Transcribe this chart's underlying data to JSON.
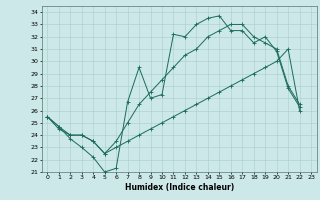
{
  "title": "",
  "xlabel": "Humidex (Indice chaleur)",
  "bg_color": "#cce8e8",
  "grid_color": "#aacccc",
  "line_color": "#1a6b5a",
  "xlim": [
    -0.5,
    23.5
  ],
  "ylim": [
    21,
    34.5
  ],
  "xticks": [
    0,
    1,
    2,
    3,
    4,
    5,
    6,
    7,
    8,
    9,
    10,
    11,
    12,
    13,
    14,
    15,
    16,
    17,
    18,
    19,
    20,
    21,
    22,
    23
  ],
  "yticks": [
    21,
    22,
    23,
    24,
    25,
    26,
    27,
    28,
    29,
    30,
    31,
    32,
    33,
    34
  ],
  "line1_y": [
    25.5,
    24.7,
    23.7,
    23.0,
    22.2,
    21.0,
    21.3,
    26.7,
    29.5,
    27.0,
    27.3,
    32.2,
    32.0,
    33.0,
    33.5,
    33.7,
    32.5,
    32.5,
    31.5,
    32.0,
    30.8,
    27.8,
    26.3,
    null
  ],
  "line2_y": [
    25.5,
    24.7,
    24.0,
    24.0,
    23.5,
    22.5,
    23.5,
    25.0,
    26.5,
    27.5,
    28.5,
    29.5,
    30.5,
    31.0,
    32.0,
    32.5,
    33.0,
    33.0,
    32.0,
    31.5,
    31.0,
    28.0,
    26.5,
    null
  ],
  "line3_y": [
    25.5,
    24.5,
    24.0,
    24.0,
    23.5,
    22.5,
    23.0,
    23.5,
    24.0,
    24.5,
    25.0,
    25.5,
    26.0,
    26.5,
    27.0,
    27.5,
    28.0,
    28.5,
    29.0,
    29.5,
    30.0,
    31.0,
    26.0,
    null
  ],
  "xlabel_fontsize": 5.5,
  "tick_fontsize": 4.5,
  "linewidth": 0.7,
  "markersize": 2.5
}
